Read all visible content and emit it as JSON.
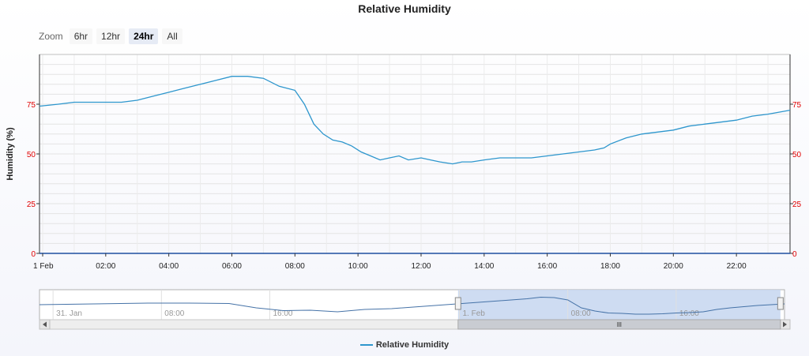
{
  "title": "Relative Humidity",
  "zoom": {
    "label": "Zoom",
    "buttons": [
      {
        "label": "6hr",
        "active": false
      },
      {
        "label": "12hr",
        "active": false
      },
      {
        "label": "24hr",
        "active": true
      },
      {
        "label": "All",
        "active": false
      }
    ]
  },
  "legend": {
    "label": "Relative Humidity"
  },
  "colors": {
    "series": "#2d96cd",
    "axis_tick_labels": "#e00000",
    "navigator_series": "#4572a7",
    "navigator_mask": "#c6d6f0"
  },
  "chart_data": {
    "type": "line",
    "title": "Relative Humidity",
    "ylabel": "Humidity (%)",
    "xlabel": "",
    "x_range_hours": [
      -0.1,
      23.7
    ],
    "ylim": [
      0,
      100
    ],
    "y_ticks": [
      0,
      25,
      50,
      75
    ],
    "x_ticks": [
      {
        "h": 0,
        "label": "1 Feb"
      },
      {
        "h": 2,
        "label": "02:00"
      },
      {
        "h": 4,
        "label": "04:00"
      },
      {
        "h": 6,
        "label": "06:00"
      },
      {
        "h": 8,
        "label": "08:00"
      },
      {
        "h": 10,
        "label": "10:00"
      },
      {
        "h": 12,
        "label": "12:00"
      },
      {
        "h": 14,
        "label": "14:00"
      },
      {
        "h": 16,
        "label": "16:00"
      },
      {
        "h": 18,
        "label": "18:00"
      },
      {
        "h": 20,
        "label": "20:00"
      },
      {
        "h": 22,
        "label": "22:00"
      }
    ],
    "grid": true,
    "legend": "bottom-center",
    "series": [
      {
        "name": "Relative Humidity",
        "x": [
          -0.1,
          0.5,
          1.0,
          1.5,
          2.0,
          2.5,
          3.0,
          3.5,
          4.0,
          4.5,
          5.0,
          5.5,
          6.0,
          6.5,
          7.0,
          7.5,
          8.0,
          8.3,
          8.6,
          8.9,
          9.2,
          9.5,
          9.8,
          10.1,
          10.4,
          10.7,
          11.0,
          11.3,
          11.6,
          12.0,
          12.3,
          12.6,
          13.0,
          13.3,
          13.6,
          14.0,
          14.5,
          15.0,
          15.5,
          16.0,
          16.5,
          17.0,
          17.5,
          17.8,
          18.0,
          18.5,
          19.0,
          19.5,
          20.0,
          20.5,
          21.0,
          21.5,
          22.0,
          22.5,
          23.0,
          23.7
        ],
        "y": [
          74,
          75,
          76,
          76,
          76,
          76,
          77,
          79,
          81,
          83,
          85,
          87,
          89,
          89,
          88,
          84,
          82,
          75,
          65,
          60,
          57,
          56,
          54,
          51,
          49,
          47,
          48,
          49,
          47,
          48,
          47,
          46,
          45,
          46,
          46,
          47,
          48,
          48,
          48,
          49,
          50,
          51,
          52,
          53,
          55,
          58,
          60,
          61,
          62,
          64,
          65,
          66,
          67,
          69,
          70,
          72
        ]
      }
    ]
  },
  "navigator": {
    "x_labels": [
      "31. Jan",
      "08:00",
      "16:00",
      "1. Feb",
      "08:00",
      "16:00"
    ],
    "x_range_hours": [
      -31,
      24
    ],
    "selection_hours": [
      -0.1,
      23.7
    ],
    "series_x": [
      -31,
      -27,
      -23,
      -20,
      -17,
      -15,
      -13,
      -11,
      -9,
      -7,
      -5,
      -3,
      -1,
      1,
      3,
      5,
      6,
      7,
      8,
      9,
      10,
      11,
      12,
      13,
      14,
      15,
      16,
      17,
      18,
      19,
      20,
      21,
      22,
      23,
      24
    ],
    "series_y": [
      70,
      72,
      74,
      74,
      73,
      62,
      55,
      56,
      52,
      58,
      60,
      65,
      70,
      75,
      80,
      85,
      89,
      88,
      82,
      62,
      54,
      49,
      48,
      46,
      46,
      47,
      49,
      50,
      52,
      58,
      62,
      65,
      68,
      70,
      72
    ]
  }
}
